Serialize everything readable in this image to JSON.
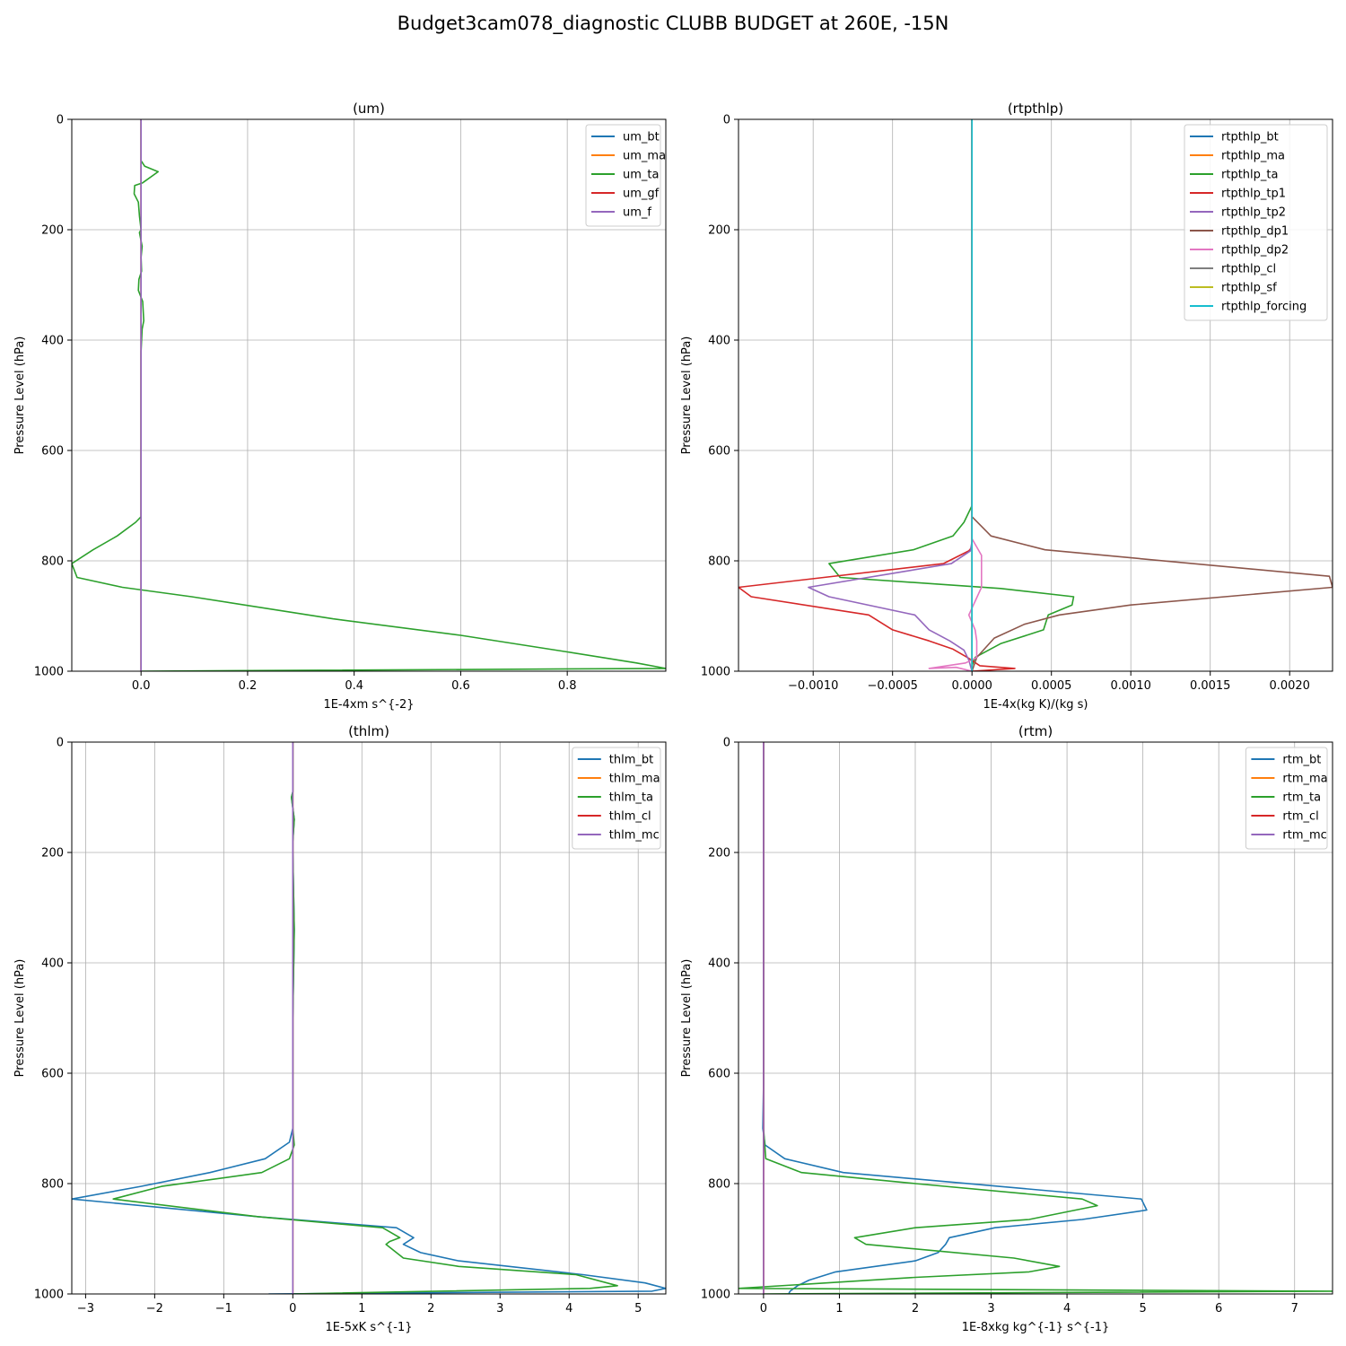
{
  "figure": {
    "title": "Budget3cam078_diagnostic CLUBB BUDGET at 260E, -15N"
  },
  "chart_data": [
    {
      "type": "line",
      "title": "(um)",
      "xlabel": "1E-4xm s^{-2}",
      "ylabel": "Pressure Level (hPa)",
      "xlim": [
        -0.13,
        0.985
      ],
      "ylim": [
        1000,
        0
      ],
      "xticks": [
        {
          "v": 0,
          "label": "0.0"
        },
        {
          "v": 0.2,
          "label": "0.2"
        },
        {
          "v": 0.4,
          "label": "0.4"
        },
        {
          "v": 0.6,
          "label": "0.6"
        },
        {
          "v": 0.8,
          "label": "0.8"
        }
      ],
      "yticks": [
        0,
        200,
        400,
        600,
        800,
        1000
      ],
      "grid": true,
      "legend": "top-right",
      "series": [
        {
          "name": "um_bt",
          "color": "#1f77b4",
          "x": [
            0,
            0
          ],
          "y": [
            0,
            1000
          ]
        },
        {
          "name": "um_ma",
          "color": "#ff7f0e",
          "x": [
            0,
            0
          ],
          "y": [
            0,
            1000
          ]
        },
        {
          "name": "um_ta",
          "color": "#2ca02c",
          "x": [
            0,
            0,
            0.007,
            0.032,
            0.003,
            -0.012,
            -0.013,
            -0.005,
            -0.003,
            0.0,
            -0.003,
            0.002,
            0.0,
            0.001,
            -0.004,
            -0.005,
            0.003,
            0.005,
            0.002,
            0.0,
            0.0,
            0.0,
            0.0,
            0.0,
            0.0,
            0.0,
            -0.01,
            -0.045,
            -0.09,
            -0.13,
            -0.12,
            -0.035,
            0.095,
            0.36,
            0.6,
            0.8,
            0.93,
            0.985,
            0.0
          ],
          "y": [
            0,
            75,
            85,
            95,
            115,
            120,
            135,
            150,
            175,
            200,
            205,
            230,
            250,
            275,
            290,
            310,
            330,
            365,
            380,
            420,
            480,
            560,
            600,
            640,
            700,
            720,
            730,
            755,
            780,
            805,
            830,
            848,
            865,
            905,
            935,
            965,
            985,
            995,
            1000
          ]
        },
        {
          "name": "um_gf",
          "color": "#d62728",
          "x": [
            0,
            0
          ],
          "y": [
            0,
            1000
          ]
        },
        {
          "name": "um_f",
          "color": "#9467bd",
          "x": [
            0,
            0
          ],
          "y": [
            0,
            1000
          ]
        }
      ]
    },
    {
      "type": "line",
      "title": "(rtpthlp)",
      "xlabel": "1E-4x(kg K)/(kg s)",
      "ylabel": "Pressure Level (hPa)",
      "xlim": [
        -0.00147,
        0.00227
      ],
      "ylim": [
        1000,
        0
      ],
      "xticks": [
        {
          "v": -0.001,
          "label": "−0.0010"
        },
        {
          "v": -0.0005,
          "label": "−0.0005"
        },
        {
          "v": 0,
          "label": "0.0000"
        },
        {
          "v": 0.0005,
          "label": "0.0005"
        },
        {
          "v": 0.001,
          "label": "0.0010"
        },
        {
          "v": 0.0015,
          "label": "0.0015"
        },
        {
          "v": 0.002,
          "label": "0.0020"
        }
      ],
      "yticks": [
        0,
        200,
        400,
        600,
        800,
        1000
      ],
      "grid": true,
      "legend": "top-right",
      "series": [
        {
          "name": "rtpthlp_bt",
          "color": "#1f77b4",
          "x": [
            0,
            0
          ],
          "y": [
            0,
            1000
          ]
        },
        {
          "name": "rtpthlp_ma",
          "color": "#ff7f0e",
          "x": [
            0,
            0
          ],
          "y": [
            0,
            1000
          ]
        },
        {
          "name": "rtpthlp_ta",
          "color": "#2ca02c",
          "x": [
            0,
            0,
            -5e-05,
            -0.00012,
            -0.00037,
            -0.0009,
            -0.00083,
            0.00018,
            0.00064,
            0.00063,
            0.00048,
            0.00045,
            0.00018,
            2e-05,
            0.0,
            0.0
          ],
          "y": [
            0,
            700,
            730,
            755,
            780,
            805,
            830,
            850,
            865,
            880,
            898,
            925,
            950,
            975,
            990,
            1000
          ]
        },
        {
          "name": "rtpthlp_tp1",
          "color": "#d62728",
          "x": [
            0,
            0,
            -2e-05,
            -0.00018,
            -0.00147,
            -0.00139,
            -0.00065,
            -0.0005,
            -0.00027,
            -0.00012,
            -3e-05,
            5e-05,
            0.00027,
            0.0
          ],
          "y": [
            0,
            775,
            782,
            805,
            848,
            865,
            898,
            925,
            945,
            960,
            975,
            990,
            995,
            1000
          ]
        },
        {
          "name": "rtpthlp_tp2",
          "color": "#9467bd",
          "x": [
            0,
            0,
            -1e-05,
            -0.00013,
            -0.00103,
            -0.0009,
            -0.00036,
            -0.00027,
            -0.00014,
            -5e-05,
            -2e-05,
            0.0
          ],
          "y": [
            0,
            765,
            782,
            805,
            848,
            865,
            898,
            925,
            945,
            962,
            980,
            1000
          ]
        },
        {
          "name": "rtpthlp_dp1",
          "color": "#8c564b",
          "x": [
            0,
            0,
            0.00012,
            0.00046,
            0.00225,
            0.00227,
            0.001,
            0.00055,
            0.00033,
            0.00014,
            3e-05,
            0.0
          ],
          "y": [
            0,
            720,
            755,
            780,
            828,
            848,
            880,
            898,
            915,
            940,
            975,
            1000
          ]
        },
        {
          "name": "rtpthlp_dp2",
          "color": "#e377c2",
          "x": [
            0,
            0,
            6e-05,
            6e-05,
            -2e-05,
            2e-05,
            3e-05,
            3e-05,
            -4e-05,
            -0.00027,
            -0.0001,
            0.0
          ],
          "y": [
            0,
            760,
            790,
            848,
            898,
            925,
            945,
            975,
            985,
            995,
            993,
            1000
          ]
        },
        {
          "name": "rtpthlp_cl",
          "color": "#7f7f7f",
          "x": [
            0,
            0
          ],
          "y": [
            0,
            1000
          ]
        },
        {
          "name": "rtpthlp_sf",
          "color": "#bcbd22",
          "x": [
            0,
            0
          ],
          "y": [
            0,
            1000
          ]
        },
        {
          "name": "rtpthlp_forcing",
          "color": "#17becf",
          "x": [
            0,
            0
          ],
          "y": [
            0,
            1000
          ]
        }
      ]
    },
    {
      "type": "line",
      "title": "(thlm)",
      "xlabel": "1E-5xK s^{-1}",
      "ylabel": "Pressure Level (hPa)",
      "xlim": [
        -3.2,
        5.4
      ],
      "ylim": [
        1000,
        0
      ],
      "xticks": [
        {
          "v": -3,
          "label": "−3"
        },
        {
          "v": -2,
          "label": "−2"
        },
        {
          "v": -1,
          "label": "−1"
        },
        {
          "v": 0,
          "label": "0"
        },
        {
          "v": 1,
          "label": "1"
        },
        {
          "v": 2,
          "label": "2"
        },
        {
          "v": 3,
          "label": "3"
        },
        {
          "v": 4,
          "label": "4"
        },
        {
          "v": 5,
          "label": "5"
        }
      ],
      "yticks": [
        0,
        200,
        400,
        600,
        800,
        1000
      ],
      "grid": true,
      "legend": "top-right",
      "series": [
        {
          "name": "thlm_bt",
          "color": "#1f77b4",
          "x": [
            0,
            0,
            -0.02,
            0.02,
            0,
            0,
            0.02,
            0,
            0,
            -0.05,
            -0.4,
            -1.2,
            -2.2,
            -3.2,
            -0.5,
            1.5,
            1.75,
            1.6,
            1.85,
            2.4,
            4.2,
            5.1,
            5.4,
            5.2,
            -0.35
          ],
          "y": [
            0,
            90,
            100,
            140,
            180,
            200,
            340,
            500,
            700,
            725,
            755,
            780,
            805,
            828,
            860,
            880,
            898,
            910,
            925,
            940,
            965,
            980,
            990,
            995,
            1000
          ]
        },
        {
          "name": "thlm_ma",
          "color": "#ff7f0e",
          "x": [
            0,
            0
          ],
          "y": [
            0,
            1000
          ]
        },
        {
          "name": "thlm_ta",
          "color": "#2ca02c",
          "x": [
            0,
            0,
            -0.02,
            0.02,
            0,
            0,
            0.02,
            0,
            0,
            0.02,
            -0.05,
            -0.45,
            -1.9,
            -2.6,
            -0.5,
            1.3,
            1.55,
            1.4,
            1.35,
            1.6,
            2.4,
            4.1,
            4.7,
            4.3,
            0.0
          ],
          "y": [
            0,
            90,
            100,
            140,
            180,
            200,
            340,
            500,
            700,
            730,
            755,
            780,
            805,
            828,
            860,
            880,
            898,
            905,
            910,
            935,
            950,
            965,
            985,
            990,
            1000
          ]
        },
        {
          "name": "thlm_cl",
          "color": "#d62728",
          "x": [
            0,
            0
          ],
          "y": [
            0,
            1000
          ]
        },
        {
          "name": "thlm_mc",
          "color": "#9467bd",
          "x": [
            0,
            0
          ],
          "y": [
            0,
            1000
          ]
        }
      ]
    },
    {
      "type": "line",
      "title": "(rtm)",
      "xlabel": "1E-8xkg kg^{-1} s^{-1}",
      "ylabel": "Pressure Level (hPa)",
      "xlim": [
        -0.33,
        7.5
      ],
      "ylim": [
        1000,
        0
      ],
      "xticks": [
        {
          "v": 0,
          "label": "0"
        },
        {
          "v": 1,
          "label": "1"
        },
        {
          "v": 2,
          "label": "2"
        },
        {
          "v": 3,
          "label": "3"
        },
        {
          "v": 4,
          "label": "4"
        },
        {
          "v": 5,
          "label": "5"
        },
        {
          "v": 6,
          "label": "6"
        },
        {
          "v": 7,
          "label": "7"
        }
      ],
      "yticks": [
        0,
        200,
        400,
        600,
        800,
        1000
      ],
      "grid": true,
      "legend": "top-right",
      "series": [
        {
          "name": "rtm_bt",
          "color": "#1f77b4",
          "x": [
            0,
            0,
            -0.01,
            0.02,
            0.28,
            1.05,
            4.98,
            5.05,
            4.2,
            3.05,
            2.45,
            2.4,
            2.3,
            2.0,
            0.95,
            0.6,
            0.45,
            0.35,
            0.33
          ],
          "y": [
            0,
            620,
            700,
            730,
            755,
            780,
            828,
            848,
            865,
            880,
            898,
            910,
            925,
            940,
            960,
            975,
            985,
            995,
            1000
          ]
        },
        {
          "name": "rtm_ma",
          "color": "#ff7f0e",
          "x": [
            0,
            0
          ],
          "y": [
            0,
            1000
          ]
        },
        {
          "name": "rtm_ta",
          "color": "#2ca02c",
          "x": [
            0,
            0,
            0.03,
            0.5,
            2.0,
            4.2,
            4.4,
            3.5,
            2.0,
            1.2,
            1.35,
            3.3,
            3.9,
            3.5,
            2.0,
            -0.33,
            7.5,
            0.0
          ],
          "y": [
            0,
            700,
            755,
            780,
            800,
            828,
            840,
            865,
            880,
            898,
            910,
            935,
            950,
            960,
            970,
            990,
            995,
            1000
          ]
        },
        {
          "name": "rtm_cl",
          "color": "#d62728",
          "x": [
            0,
            0
          ],
          "y": [
            0,
            1000
          ]
        },
        {
          "name": "rtm_mc",
          "color": "#9467bd",
          "x": [
            0,
            0
          ],
          "y": [
            0,
            1000
          ]
        }
      ]
    }
  ]
}
